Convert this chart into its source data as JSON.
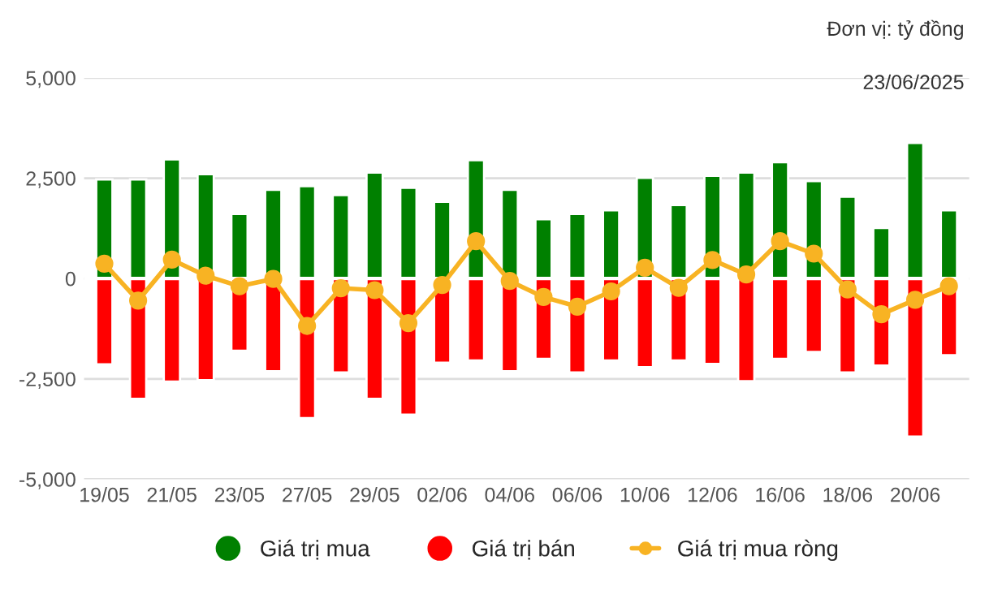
{
  "chart_data": {
    "type": "bar",
    "annotations": [
      "Đơn vị: tỷ đồng",
      "23/06/2025"
    ],
    "categories": [
      "19/05",
      null,
      "21/05",
      null,
      "23/05",
      null,
      "27/05",
      null,
      "29/05",
      null,
      "02/06",
      null,
      "04/06",
      null,
      "06/06",
      null,
      "10/06",
      null,
      "12/06",
      null,
      "16/06",
      null,
      "18/06",
      null,
      "20/06",
      null
    ],
    "series": [
      {
        "name": "Giá trị mua",
        "color": "#008000",
        "values": [
          2470,
          2470,
          2970,
          2600,
          1610,
          2210,
          2300,
          2080,
          2640,
          2260,
          1910,
          2950,
          2210,
          1480,
          1610,
          1700,
          2510,
          1830,
          2560,
          2640,
          2900,
          2430,
          2040,
          1260,
          3380,
          1700
        ]
      },
      {
        "name": "Giá trị bán",
        "color": "#ff0000",
        "values": [
          -2140,
          -3000,
          -2570,
          -2530,
          -1800,
          -2310,
          -3480,
          -2340,
          -3000,
          -3390,
          -2100,
          -2040,
          -2310,
          -2000,
          -2340,
          -2040,
          -2210,
          -2040,
          -2130,
          -2560,
          -2000,
          -1830,
          -2340,
          -2170,
          -3940,
          -1910
        ]
      },
      {
        "name": "Giá trị mua ròng",
        "color": "#f8b323",
        "type": "line",
        "marker": "circle",
        "values": [
          370,
          -550,
          470,
          70,
          -190,
          -10,
          -1180,
          -240,
          -290,
          -1110,
          -160,
          930,
          -60,
          -460,
          -700,
          -320,
          270,
          -230,
          460,
          100,
          930,
          620,
          -270,
          -890,
          -530,
          -190
        ]
      }
    ],
    "ylim": [
      -5000,
      5000
    ],
    "yticks": [
      {
        "value": -5000,
        "label": "-5,000"
      },
      {
        "value": -2500,
        "label": "-2,500"
      },
      0,
      {
        "value": 2500,
        "label": "2,500"
      },
      {
        "value": 5000,
        "label": "5,000"
      }
    ],
    "stacked": true,
    "grid": "y",
    "legend": "bottom"
  }
}
